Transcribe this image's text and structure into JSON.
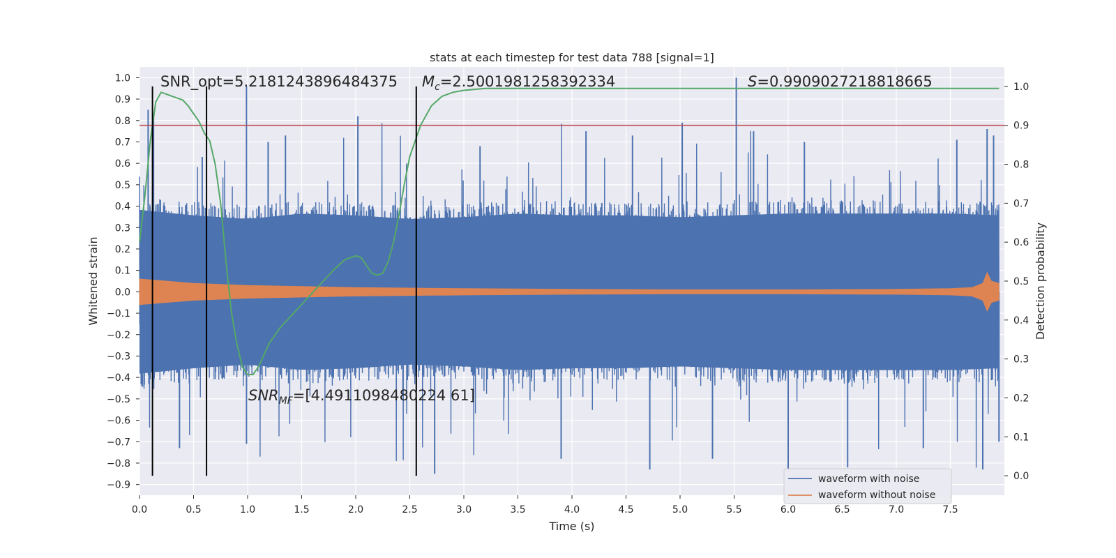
{
  "chart_data": {
    "type": "line",
    "title": "stats at each timestep for test data 788 [signal=1]",
    "xlabel": "Time (s)",
    "ylabel": "Whitened strain",
    "y2label": "Detection probability",
    "xlim": [
      0.0,
      8.0
    ],
    "ylim": [
      -0.95,
      1.05
    ],
    "y2lim": [
      -0.05,
      1.05
    ],
    "xticks": [
      "0.0",
      "0.5",
      "1.0",
      "1.5",
      "2.0",
      "2.5",
      "3.0",
      "3.5",
      "4.0",
      "4.5",
      "5.0",
      "5.5",
      "6.0",
      "6.5",
      "7.0",
      "7.5"
    ],
    "yticks": [
      "−0.9",
      "−0.8",
      "−0.7",
      "−0.6",
      "−0.5",
      "−0.4",
      "−0.3",
      "−0.2",
      "−0.1",
      "0.0",
      "0.1",
      "0.2",
      "0.3",
      "0.4",
      "0.5",
      "0.6",
      "0.7",
      "0.8",
      "0.9",
      "1.0"
    ],
    "y2ticks": [
      "0.0",
      "0.1",
      "0.2",
      "0.3",
      "0.4",
      "0.5",
      "0.6",
      "0.7",
      "0.8",
      "0.9",
      "1.0"
    ],
    "grid": true,
    "legend": {
      "position": "lower-right",
      "entries": [
        {
          "name": "waveform with noise",
          "color": "#4c72b0"
        },
        {
          "name": "waveform without noise",
          "color": "#dd8452"
        }
      ]
    },
    "series": [
      {
        "name": "waveform with noise",
        "axis": "left",
        "color": "#4c72b0",
        "upper_envelope": {
          "x": [
            0.0,
            0.5,
            1.0,
            1.5,
            2.0,
            2.5,
            3.0,
            3.5,
            4.0,
            4.5,
            5.0,
            5.5,
            6.0,
            6.5,
            7.0,
            7.5,
            7.95
          ],
          "y": [
            0.45,
            0.42,
            0.4,
            0.43,
            0.42,
            0.4,
            0.41,
            0.43,
            0.42,
            0.42,
            0.41,
            0.42,
            0.43,
            0.43,
            0.43,
            0.43,
            0.42
          ]
        },
        "peaks": [
          {
            "x": 0.08,
            "y": 0.85
          },
          {
            "x": 0.13,
            "y": 0.83
          },
          {
            "x": 0.58,
            "y": 0.63
          },
          {
            "x": 0.99,
            "y": 0.96
          },
          {
            "x": 1.19,
            "y": 0.7
          },
          {
            "x": 1.35,
            "y": 0.73
          },
          {
            "x": 2.02,
            "y": 0.82
          },
          {
            "x": 3.15,
            "y": 0.68
          },
          {
            "x": 4.13,
            "y": 0.75
          },
          {
            "x": 4.56,
            "y": 0.73
          },
          {
            "x": 5.02,
            "y": 0.79
          },
          {
            "x": 5.52,
            "y": 1.0
          },
          {
            "x": 5.68,
            "y": 0.75
          },
          {
            "x": 6.15,
            "y": 0.7
          },
          {
            "x": 7.56,
            "y": 0.71
          },
          {
            "x": 7.84,
            "y": 0.76
          },
          {
            "x": 7.9,
            "y": 0.73
          }
        ],
        "troughs": [
          {
            "x": 0.37,
            "y": -0.73
          },
          {
            "x": 0.99,
            "y": -0.71
          },
          {
            "x": 2.73,
            "y": -0.85
          },
          {
            "x": 3.9,
            "y": -0.78
          },
          {
            "x": 4.72,
            "y": -0.83
          },
          {
            "x": 5.3,
            "y": -0.78
          },
          {
            "x": 6.0,
            "y": -0.84
          },
          {
            "x": 6.55,
            "y": -0.82
          },
          {
            "x": 7.25,
            "y": -0.73
          },
          {
            "x": 7.8,
            "y": -0.83
          },
          {
            "x": 7.95,
            "y": -0.7
          }
        ]
      },
      {
        "name": "waveform without noise",
        "axis": "left",
        "color": "#dd8452",
        "amplitude_envelope": {
          "x": [
            0.0,
            0.5,
            1.0,
            2.0,
            3.0,
            4.0,
            5.0,
            6.0,
            7.0,
            7.5,
            7.7,
            7.8,
            7.84,
            7.88,
            7.95
          ],
          "y": [
            0.06,
            0.04,
            0.03,
            0.02,
            0.015,
            0.012,
            0.01,
            0.01,
            0.012,
            0.015,
            0.02,
            0.04,
            0.09,
            0.05,
            0.04
          ]
        }
      },
      {
        "name": "detection probability",
        "axis": "right",
        "color": "#55a868",
        "x": [
          0.0,
          0.05,
          0.1,
          0.15,
          0.2,
          0.25,
          0.3,
          0.35,
          0.4,
          0.45,
          0.5,
          0.55,
          0.6,
          0.65,
          0.7,
          0.75,
          0.8,
          0.85,
          0.9,
          0.95,
          1.0,
          1.05,
          1.1,
          1.15,
          1.2,
          1.3,
          1.4,
          1.5,
          1.6,
          1.7,
          1.8,
          1.9,
          1.95,
          2.0,
          2.05,
          2.1,
          2.15,
          2.2,
          2.25,
          2.3,
          2.35,
          2.4,
          2.45,
          2.5,
          2.6,
          2.7,
          2.8,
          2.9,
          3.0,
          3.2,
          3.5,
          4.0,
          5.0,
          6.0,
          7.0,
          7.95
        ],
        "y": [
          0.6,
          0.72,
          0.86,
          0.96,
          0.985,
          0.98,
          0.975,
          0.97,
          0.965,
          0.95,
          0.93,
          0.91,
          0.88,
          0.86,
          0.8,
          0.7,
          0.55,
          0.42,
          0.34,
          0.28,
          0.26,
          0.26,
          0.28,
          0.31,
          0.34,
          0.38,
          0.41,
          0.44,
          0.47,
          0.5,
          0.53,
          0.555,
          0.56,
          0.565,
          0.56,
          0.54,
          0.52,
          0.515,
          0.52,
          0.55,
          0.6,
          0.67,
          0.75,
          0.82,
          0.9,
          0.95,
          0.975,
          0.985,
          0.99,
          0.995,
          0.995,
          0.995,
          0.995,
          0.995,
          0.995,
          0.995
        ]
      }
    ],
    "threshold": {
      "axis": "right",
      "value": 0.9,
      "color": "#c44e52"
    },
    "vlines": [
      0.12,
      0.62,
      2.56
    ],
    "annotations": {
      "snr_opt": "SNR_opt=5.2181243896484375",
      "mc_symbol": "M",
      "mc_sub": "c",
      "mc_value": "=2.5001981258392334",
      "s_symbol": "S",
      "s_value": "=0.9909027218818665",
      "snr_mf_symbol": "SNR",
      "snr_mf_sub": "MF",
      "snr_mf_value": "=[4.4911098480224 61]"
    }
  }
}
